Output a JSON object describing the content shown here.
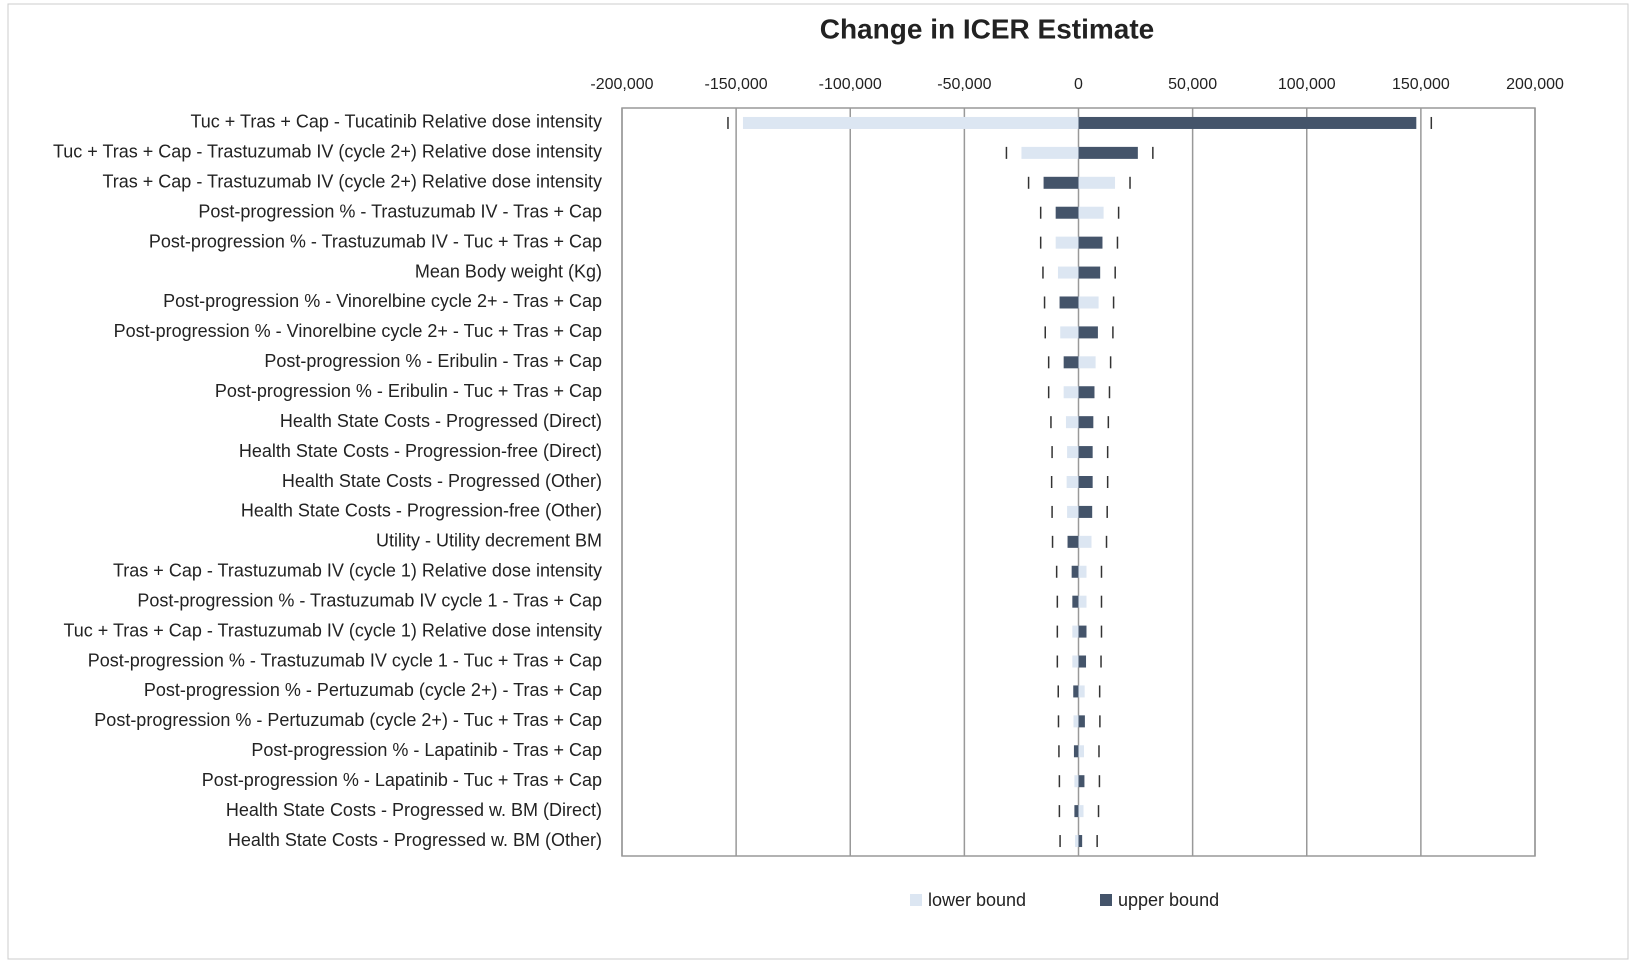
{
  "chart_data": {
    "type": "tornado",
    "title": "Change in ICER Estimate",
    "categories": [
      "Tuc + Tras + Cap - Tucatinib Relative dose intensity",
      "Tuc + Tras + Cap - Trastuzumab IV (cycle 2+) Relative dose intensity",
      "Tras + Cap - Trastuzumab IV (cycle 2+) Relative dose intensity",
      "Post-progression % - Trastuzumab IV  - Tras + Cap",
      "Post-progression % - Trastuzumab IV  - Tuc + Tras + Cap",
      "Mean Body weight (Kg)",
      "Post-progression % - Vinorelbine cycle 2+ - Tras + Cap",
      "Post-progression % - Vinorelbine cycle 2+ - Tuc + Tras + Cap",
      "Post-progression % - Eribulin - Tras + Cap",
      "Post-progression % - Eribulin - Tuc + Tras + Cap",
      "Health State Costs - Progressed (Direct)",
      "Health State Costs - Progression-free (Direct)",
      "Health State Costs - Progressed (Other)",
      "Health State Costs - Progression-free (Other)",
      "Utility - Utility decrement BM",
      "Tras + Cap - Trastuzumab IV (cycle 1) Relative dose intensity",
      "Post-progression % - Trastuzumab IV cycle 1 - Tras + Cap",
      "Tuc + Tras + Cap - Trastuzumab IV (cycle 1) Relative dose intensity",
      "Post-progression % - Trastuzumab IV cycle 1 - Tuc + Tras + Cap",
      "Post-progression % - Pertuzumab (cycle 2+) - Tras + Cap",
      "Post-progression % - Pertuzumab (cycle 2+) - Tuc + Tras + Cap",
      "Post-progression % - Lapatinib - Tras + Cap",
      "Post-progression % - Lapatinib - Tuc + Tras + Cap",
      "Health State Costs - Progressed w. BM (Direct)",
      "Health State Costs - Progressed w. BM (Other)"
    ],
    "series": [
      {
        "name": "lower bound",
        "color": "#dce6f2",
        "values": [
          -147000,
          -25000,
          16000,
          11000,
          -10000,
          -9000,
          8800,
          -8000,
          7500,
          -6500,
          -5500,
          -5000,
          -5200,
          -5000,
          5700,
          3500,
          3500,
          -2700,
          -2700,
          2700,
          -2200,
          2400,
          -1800,
          2200,
          -1500
        ]
      },
      {
        "name": "upper bound",
        "color": "#44546a",
        "values": [
          148000,
          26000,
          -15300,
          -10000,
          10500,
          9500,
          -8300,
          8500,
          -6500,
          7000,
          6500,
          6200,
          6200,
          6000,
          -4800,
          -3000,
          -2700,
          3500,
          3300,
          -2300,
          2800,
          -2000,
          2600,
          -1800,
          1600
        ]
      }
    ],
    "xlim": [
      -200000,
      200000
    ],
    "xticks": [
      {
        "value": -200000,
        "label": "-200,000"
      },
      {
        "value": -150000,
        "label": "-150,000"
      },
      {
        "value": -100000,
        "label": "-100,000"
      },
      {
        "value": -50000,
        "label": "-50,000"
      },
      0,
      {
        "value": 50000,
        "label": "50,000"
      },
      {
        "value": 100000,
        "label": "100,000"
      },
      {
        "value": 150000,
        "label": "150,000"
      },
      {
        "value": 200000,
        "label": "200,000"
      }
    ],
    "grid": true,
    "legend": "bottom"
  }
}
